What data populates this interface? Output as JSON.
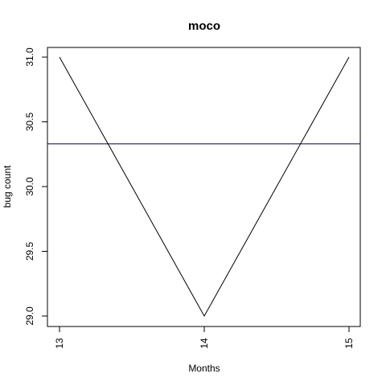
{
  "chart_data": {
    "type": "line",
    "title": "moco",
    "xlabel": "Months",
    "ylabel": "bug count",
    "x": [
      13,
      14,
      15
    ],
    "series": [
      {
        "values": [
          31,
          29,
          31
        ],
        "color": "#000000"
      }
    ],
    "hline": {
      "value": 30.33,
      "color": "#000033"
    },
    "xlim": [
      13,
      15
    ],
    "ylim": [
      29.0,
      31.0
    ],
    "xticks": [
      "13",
      "14",
      "15"
    ],
    "yticks": [
      "29.0",
      "29.5",
      "30.0",
      "30.5",
      "31.0"
    ],
    "grid": false,
    "box": true
  }
}
